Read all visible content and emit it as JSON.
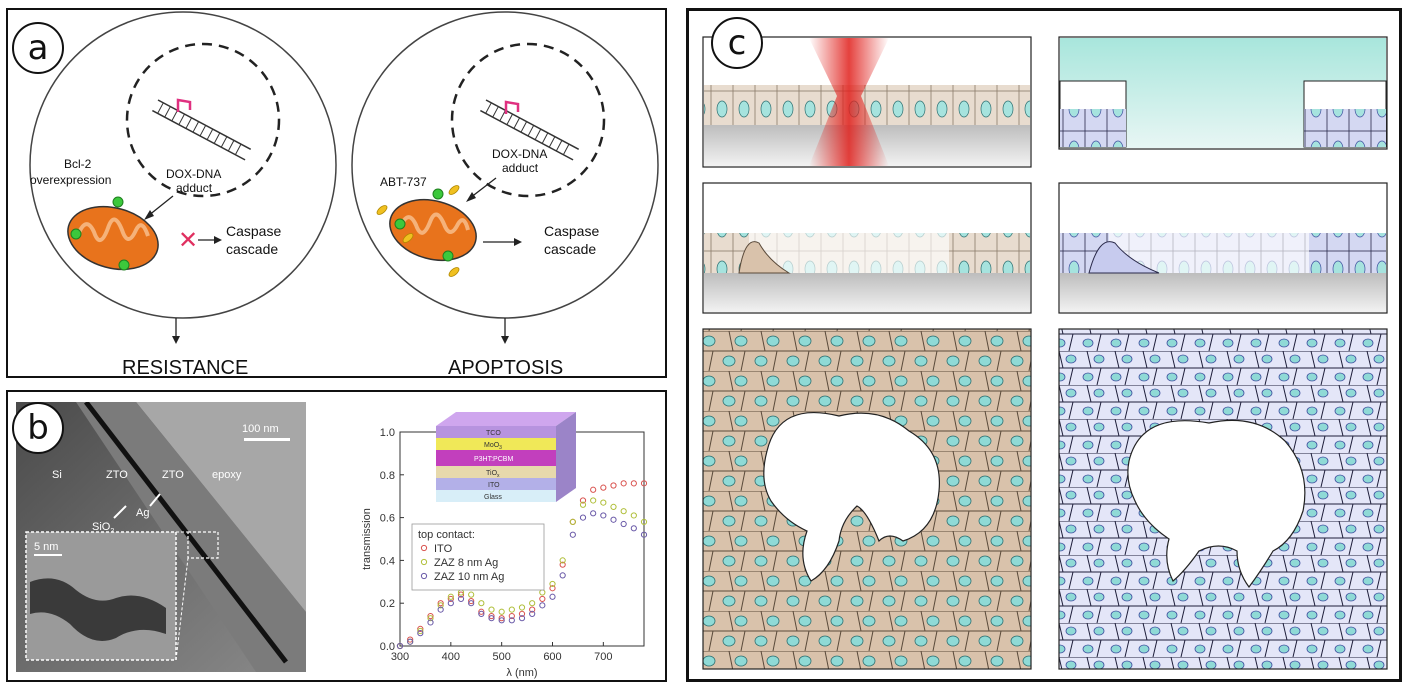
{
  "panels": {
    "a": {
      "letter": "a",
      "cell_left": {
        "adduct_label_1": "DOX-DNA",
        "adduct_label_2": "adduct",
        "protein_label_1": "Bcl-2",
        "protein_label_2": "overexpression",
        "cascade_label_1": "Caspase",
        "cascade_label_2": "cascade",
        "outcome": "RESISTANCE"
      },
      "cell_right": {
        "adduct_label_1": "DOX-DNA",
        "adduct_label_2": "adduct",
        "drug_label": "ABT-737",
        "cascade_label_1": "Caspase",
        "cascade_label_2": "cascade",
        "outcome": "APOPTOSIS"
      },
      "colors": {
        "mitochondrion": "#e8731c",
        "mito_inner": "#f5b27a",
        "bcl2": "#3cc83c",
        "abt": "#f0c020",
        "dna_mark": "#e03080",
        "blocked": "#e03060"
      }
    },
    "b": {
      "letter": "b",
      "tem": {
        "scale_bar": "100 nm",
        "inset_scale_bar": "5 nm",
        "labels": [
          "Si",
          "ZTO",
          "ZTO",
          "epoxy",
          "Ag",
          "SiO"
        ],
        "sio_subscript": "2"
      },
      "stack_layers": [
        "TCO",
        "MoO",
        "P3HT:PCBM",
        "TiO",
        "ITO",
        "Glass"
      ],
      "stack_subscripts": {
        "moo": "3",
        "tio": "x"
      }
    },
    "c": {
      "letter": "c",
      "colors": {
        "tissue": "#d9c2ab",
        "tissue_alt": "#cfd3f0",
        "nucleus": "#8fdad6",
        "laser": "#e0201c",
        "medium": "#a8e6dc"
      }
    }
  },
  "chart_data": {
    "type": "scatter",
    "xlabel": "λ (nm)",
    "ylabel": "transmission",
    "xlim": [
      300,
      780
    ],
    "ylim": [
      0.0,
      1.0
    ],
    "xticks": [
      "300",
      "400",
      "500",
      "600",
      "700"
    ],
    "yticks": [
      "0.0",
      "0.2",
      "0.4",
      "0.6",
      "0.8",
      "1.0"
    ],
    "legend_title": "top contact:",
    "legend_position": "middle-left",
    "series": [
      {
        "name": "ITO",
        "color": "#d9534f",
        "x": [
          300,
          320,
          340,
          360,
          380,
          400,
          420,
          440,
          460,
          480,
          500,
          520,
          540,
          560,
          580,
          600,
          620,
          640,
          660,
          680,
          700,
          720,
          740,
          760,
          780
        ],
        "y": [
          0.0,
          0.03,
          0.08,
          0.14,
          0.2,
          0.22,
          0.24,
          0.21,
          0.16,
          0.14,
          0.13,
          0.14,
          0.15,
          0.17,
          0.22,
          0.27,
          0.38,
          0.58,
          0.68,
          0.73,
          0.74,
          0.75,
          0.76,
          0.76,
          0.76
        ]
      },
      {
        "name": "ZAZ  8 nm Ag",
        "color": "#b0bf3a",
        "x": [
          300,
          320,
          340,
          360,
          380,
          400,
          420,
          440,
          460,
          480,
          500,
          520,
          540,
          560,
          580,
          600,
          620,
          640,
          660,
          680,
          700,
          720,
          740,
          760,
          780
        ],
        "y": [
          0.0,
          0.02,
          0.07,
          0.13,
          0.19,
          0.23,
          0.25,
          0.24,
          0.2,
          0.17,
          0.16,
          0.17,
          0.18,
          0.2,
          0.25,
          0.29,
          0.4,
          0.58,
          0.66,
          0.68,
          0.67,
          0.65,
          0.63,
          0.61,
          0.58
        ]
      },
      {
        "name": "ZAZ 10 nm Ag",
        "color": "#6a5aa8",
        "x": [
          300,
          320,
          340,
          360,
          380,
          400,
          420,
          440,
          460,
          480,
          500,
          520,
          540,
          560,
          580,
          600,
          620,
          640,
          660,
          680,
          700,
          720,
          740,
          760,
          780
        ],
        "y": [
          0.0,
          0.02,
          0.06,
          0.11,
          0.17,
          0.2,
          0.22,
          0.2,
          0.15,
          0.13,
          0.12,
          0.12,
          0.13,
          0.15,
          0.19,
          0.23,
          0.33,
          0.52,
          0.6,
          0.62,
          0.61,
          0.59,
          0.57,
          0.55,
          0.52
        ]
      }
    ]
  }
}
